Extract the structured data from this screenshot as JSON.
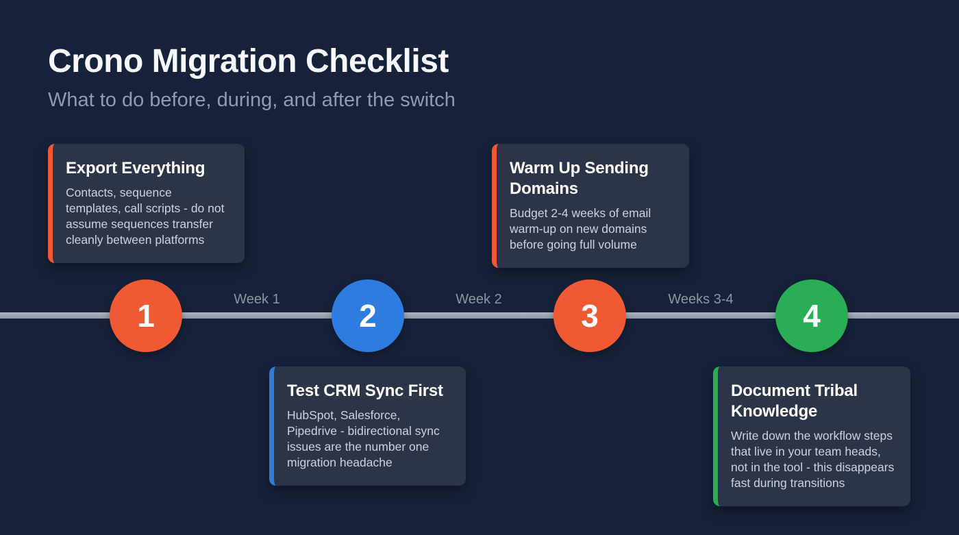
{
  "header": {
    "title": "Crono Migration Checklist",
    "subtitle": "What to do before, during, and after the switch"
  },
  "colors": {
    "background": "#16223a",
    "card_background": "#2b3547",
    "timeline_line": "#97a1ae",
    "title_text": "#f7f9fc",
    "subtitle_text": "#8e9bb1",
    "week_label_text": "#8a96a8",
    "card_body_text": "#ccd3de",
    "accent_orange": "#ef5a35",
    "accent_blue": "#2f7ce0",
    "accent_green": "#29ad55"
  },
  "timeline": {
    "week_labels": [
      "Week 1",
      "Week 2",
      "Weeks 3-4"
    ],
    "steps": [
      {
        "number": "1",
        "color": "#ef5a35",
        "position": "above-line",
        "title": "Export Everything",
        "description": "Contacts, sequence templates, call scripts - do not assume sequences transfer cleanly between platforms"
      },
      {
        "number": "2",
        "color": "#2f7ce0",
        "position": "below-line",
        "title": "Test CRM Sync First",
        "description": "HubSpot, Salesforce, Pipedrive - bidirectional sync issues are the number one migration headache"
      },
      {
        "number": "3",
        "color": "#ef5a35",
        "position": "above-line",
        "title": "Warm Up Sending Domains",
        "description": "Budget 2-4 weeks of email warm-up on new domains before going full volume"
      },
      {
        "number": "4",
        "color": "#29ad55",
        "position": "below-line",
        "title": "Document Tribal Knowledge",
        "description": "Write down the workflow steps that live in your team heads, not in the tool - this disappears fast during transitions"
      }
    ]
  }
}
